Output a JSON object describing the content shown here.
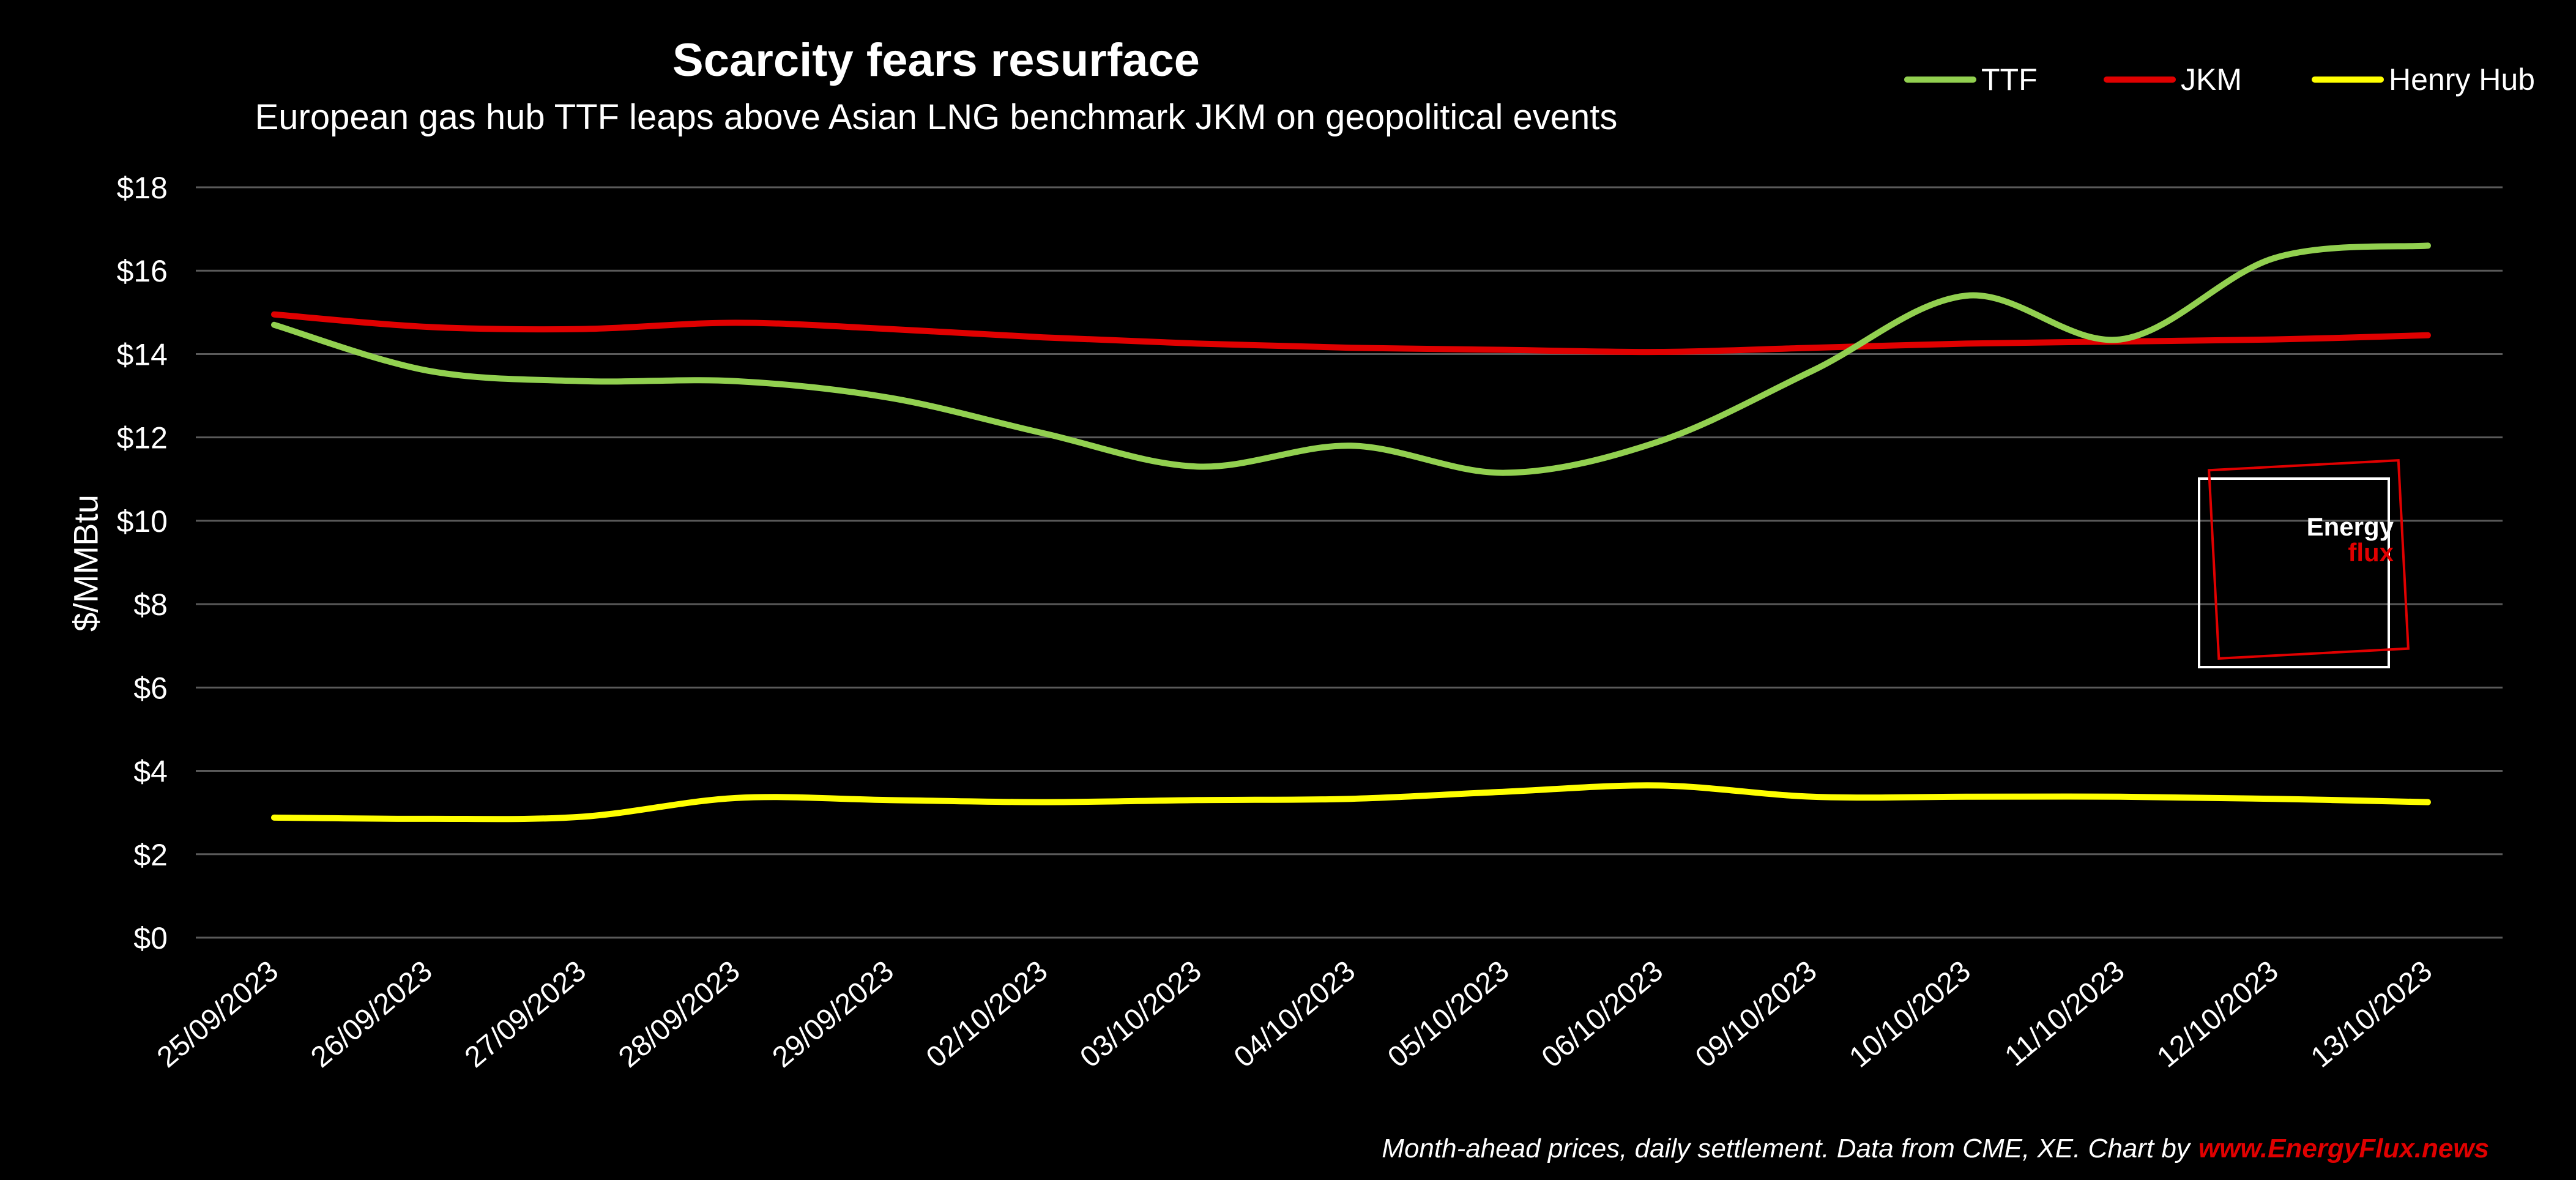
{
  "chart_data": {
    "type": "line",
    "title": "Scarcity fears resurface",
    "subtitle": "European gas hub TTF leaps above Asian LNG benchmark JKM on geopolitical events",
    "ylabel": "$/MMBtu",
    "xlabel": "",
    "ylim": [
      0,
      18
    ],
    "yticks": [
      "$0",
      "$2",
      "$4",
      "$6",
      "$8",
      "$10",
      "$12",
      "$14",
      "$16",
      "$18"
    ],
    "grid": true,
    "legend_position": "top-right",
    "categories": [
      "25/09/2023",
      "26/09/2023",
      "27/09/2023",
      "28/09/2023",
      "29/09/2023",
      "02/10/2023",
      "03/10/2023",
      "04/10/2023",
      "05/10/2023",
      "06/10/2023",
      "09/10/2023",
      "10/10/2023",
      "11/10/2023",
      "12/10/2023",
      "13/10/2023"
    ],
    "series": [
      {
        "name": "TTF",
        "color": "#92d050",
        "values": [
          14.7,
          13.6,
          13.35,
          13.35,
          12.95,
          12.1,
          11.3,
          11.8,
          11.15,
          11.9,
          13.6,
          15.4,
          14.35,
          16.3,
          16.6
        ]
      },
      {
        "name": "JKM",
        "color": "#e00000",
        "values": [
          14.95,
          14.65,
          14.6,
          14.75,
          14.6,
          14.4,
          14.25,
          14.15,
          14.1,
          14.05,
          14.15,
          14.25,
          14.3,
          14.35,
          14.45
        ]
      },
      {
        "name": "Henry Hub",
        "color": "#ffff00",
        "values": [
          2.88,
          2.85,
          2.9,
          3.35,
          3.3,
          3.25,
          3.3,
          3.33,
          3.5,
          3.65,
          3.38,
          3.38,
          3.38,
          3.33,
          3.25
        ]
      }
    ]
  },
  "footer": {
    "note": "Month-ahead prices, daily settlement. Data from CME, XE. Chart by",
    "site": "www.EnergyFlux.news"
  },
  "logo": {
    "line1": "Energy",
    "line2": "flux"
  }
}
